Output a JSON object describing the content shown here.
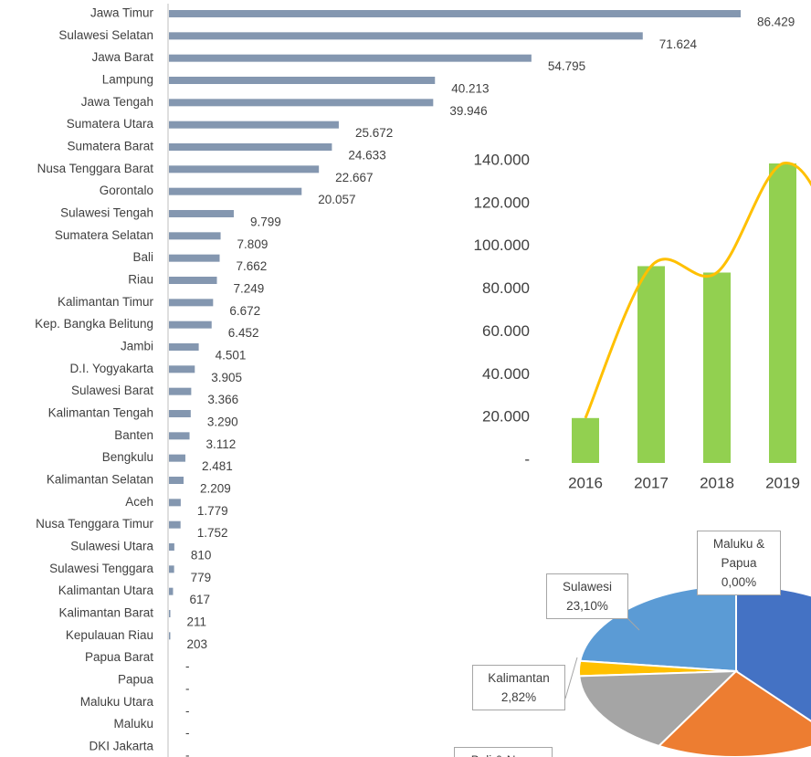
{
  "chart_data": [
    {
      "type": "hbar",
      "color": "#8497b0",
      "categories": [
        "Jawa Timur",
        "Sulawesi Selatan",
        "Jawa Barat",
        "Lampung",
        "Jawa Tengah",
        "Sumatera Utara",
        "Sumatera Barat",
        "Nusa Tenggara Barat",
        "Gorontalo",
        "Sulawesi Tengah",
        "Sumatera Selatan",
        "Bali",
        "Riau",
        "Kalimantan Timur",
        "Kep. Bangka Belitung",
        "Jambi",
        "D.I. Yogyakarta",
        "Sulawesi Barat",
        "Kalimantan Tengah",
        "Banten",
        "Bengkulu",
        "Kalimantan Selatan",
        "Aceh",
        "Nusa Tenggara Timur",
        "Sulawesi Utara",
        "Sulawesi Tenggara",
        "Kalimantan Utara",
        "Kalimantan Barat",
        "Kepulauan Riau",
        "Papua Barat",
        "Papua",
        "Maluku Utara",
        "Maluku",
        "DKI Jakarta"
      ],
      "values": [
        86429,
        71624,
        54795,
        40213,
        39946,
        25672,
        24633,
        22667,
        20057,
        9799,
        7809,
        7662,
        7249,
        6672,
        6452,
        4501,
        3905,
        3366,
        3290,
        3112,
        2481,
        2209,
        1779,
        1752,
        810,
        779,
        617,
        211,
        203,
        0,
        0,
        0,
        0,
        0
      ],
      "value_labels": [
        "86.429",
        "71.624",
        "54.795",
        "40.213",
        "39.946",
        "25.672",
        "24.633",
        "22.667",
        "20.057",
        "9.799",
        "7.809",
        "7.662",
        "7.249",
        "6.672",
        "6.452",
        "4.501",
        "3.905",
        "3.366",
        "3.290",
        "3.112",
        "2.481",
        "2.209",
        "1.779",
        "1.752",
        "810",
        "779",
        "617",
        "211",
        "203",
        "-",
        "-",
        "-",
        "-",
        "-"
      ]
    },
    {
      "type": "combo",
      "categories": [
        "2016",
        "2017",
        "2018",
        "2019"
      ],
      "series": [
        {
          "type": "bar",
          "color": "#92d050",
          "values": [
            21000,
            92000,
            89000,
            140000
          ]
        },
        {
          "type": "line",
          "color": "#ffc000",
          "values": [
            21000,
            92000,
            89000,
            140000
          ]
        }
      ],
      "ylim": [
        0,
        140000
      ],
      "yticks": [
        {
          "value": 0,
          "label": "-"
        },
        {
          "value": 20000,
          "label": "20.000"
        },
        {
          "value": 40000,
          "label": "40.000"
        },
        {
          "value": 60000,
          "label": "60.000"
        },
        {
          "value": 80000,
          "label": "80.000"
        },
        {
          "value": 100000,
          "label": "100.000"
        },
        {
          "value": 120000,
          "label": "120.000"
        },
        {
          "value": 140000,
          "label": "140.000"
        }
      ]
    },
    {
      "type": "pie",
      "categories": [
        "Maluku & Papua",
        "Sulawesi",
        "Kalimantan",
        "Bali & Nusa"
      ],
      "values": [
        0,
        23.1,
        2.82,
        null
      ],
      "value_labels": [
        "0,00%",
        "23,10%",
        "2,82%",
        null
      ],
      "colors": [
        "#264478",
        "#5b9bd5",
        "#ffc000",
        "#a5a5a5"
      ]
    }
  ]
}
